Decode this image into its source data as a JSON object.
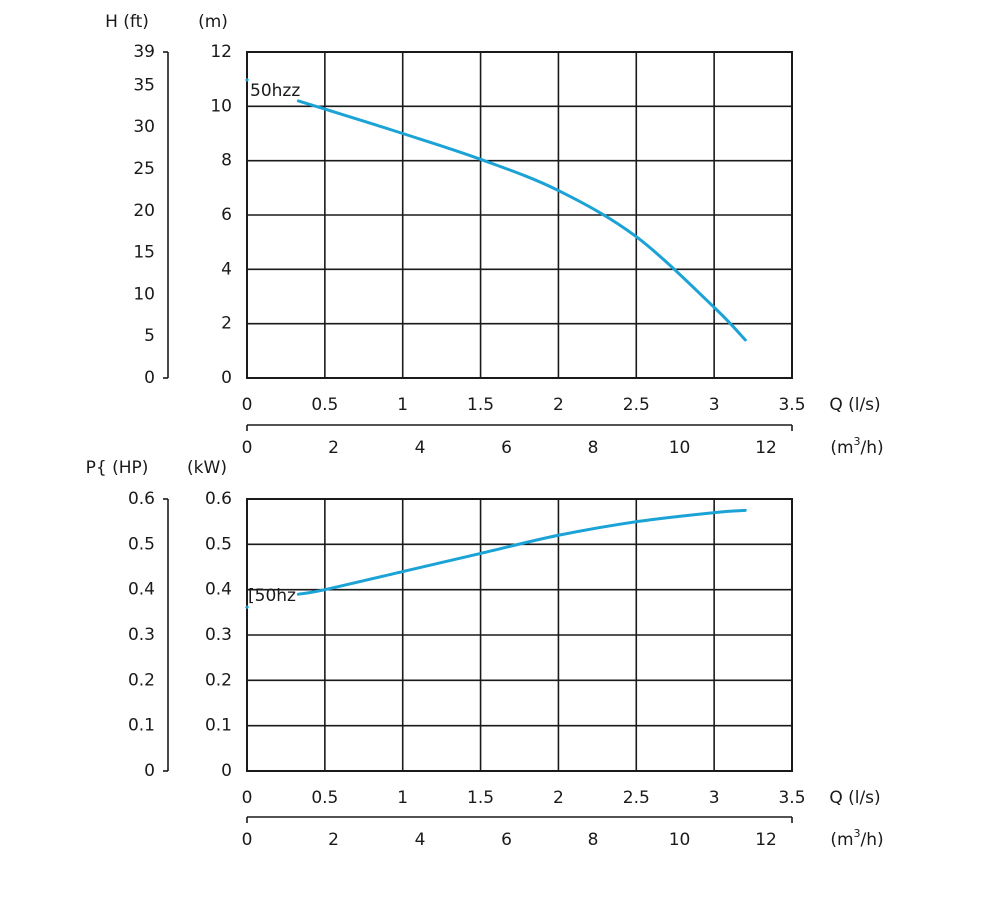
{
  "chart_data": [
    {
      "type": "line",
      "title": "",
      "series": [
        {
          "name": "50hz",
          "x": [
            0.33,
            0.5,
            1.0,
            1.5,
            2.0,
            2.5,
            3.0,
            3.2
          ],
          "y": [
            10.2,
            9.9,
            9.0,
            8.05,
            6.9,
            5.2,
            2.6,
            1.4
          ],
          "color": "#1ba3d6"
        }
      ],
      "frequency_label": "50hz",
      "frequency_label_clipped": "50hzz",
      "y_left_outer": {
        "label": "H (ft)",
        "ticks": [
          "0",
          "5",
          "10",
          "15",
          "20",
          "25",
          "30",
          "35",
          "39"
        ],
        "values": [
          0,
          5,
          10,
          15,
          20,
          25,
          30,
          35,
          39
        ]
      },
      "y_left_inner": {
        "label": "(m)",
        "ticks": [
          "0",
          "2",
          "4",
          "6",
          "8",
          "10",
          "12"
        ],
        "values": [
          0,
          2,
          4,
          6,
          8,
          10,
          12
        ]
      },
      "x_primary": {
        "label": "Q (l/s)",
        "ticks": [
          "0",
          "0.5",
          "1",
          "1.5",
          "2",
          "2.5",
          "3",
          "3.5"
        ],
        "values": [
          0,
          0.5,
          1,
          1.5,
          2,
          2.5,
          3,
          3.5
        ]
      },
      "x_secondary": {
        "label_prefix": "(m",
        "label_sup": "3",
        "label_suffix": "/h)",
        "ticks": [
          "0",
          "2",
          "4",
          "6",
          "8",
          "10",
          "12"
        ],
        "values": [
          0,
          2,
          4,
          6,
          8,
          10,
          12
        ]
      },
      "xlim": [
        0,
        3.5
      ],
      "ylim": [
        0,
        12
      ],
      "grid": true
    },
    {
      "type": "line",
      "title": "",
      "series": [
        {
          "name": "50hz",
          "x": [
            0.33,
            0.5,
            1.0,
            1.5,
            2.0,
            2.5,
            3.0,
            3.2
          ],
          "y": [
            0.39,
            0.4,
            0.44,
            0.48,
            0.52,
            0.55,
            0.57,
            0.575
          ],
          "color": "#1ba3d6"
        }
      ],
      "frequency_label": "50hz",
      "frequency_label_clipped": "[50hz",
      "y_left_outer": {
        "label": "P{ (HP)",
        "ticks": [
          "0",
          "0.1",
          "0.2",
          "0.3",
          "0.4",
          "0.5",
          "0.6"
        ],
        "values": [
          0,
          0.1,
          0.2,
          0.3,
          0.4,
          0.5,
          0.6
        ]
      },
      "y_left_inner": {
        "label": "(kW)",
        "ticks": [
          "0",
          "0.1",
          "0.2",
          "0.3",
          "0.4",
          "0.5",
          "0.6"
        ],
        "values": [
          0,
          0.1,
          0.2,
          0.3,
          0.4,
          0.5,
          0.6
        ]
      },
      "x_primary": {
        "label": "Q (l/s)",
        "ticks": [
          "0",
          "0.5",
          "1",
          "1.5",
          "2",
          "2.5",
          "3",
          "3.5"
        ],
        "values": [
          0,
          0.5,
          1,
          1.5,
          2,
          2.5,
          3,
          3.5
        ]
      },
      "x_secondary": {
        "label_prefix": "(m",
        "label_sup": "3",
        "label_suffix": "/h)",
        "ticks": [
          "0",
          "2",
          "4",
          "6",
          "8",
          "10",
          "12"
        ],
        "values": [
          0,
          2,
          4,
          6,
          8,
          10,
          12
        ]
      },
      "xlim": [
        0,
        3.5
      ],
      "ylim": [
        0,
        0.6
      ],
      "grid": true
    }
  ]
}
